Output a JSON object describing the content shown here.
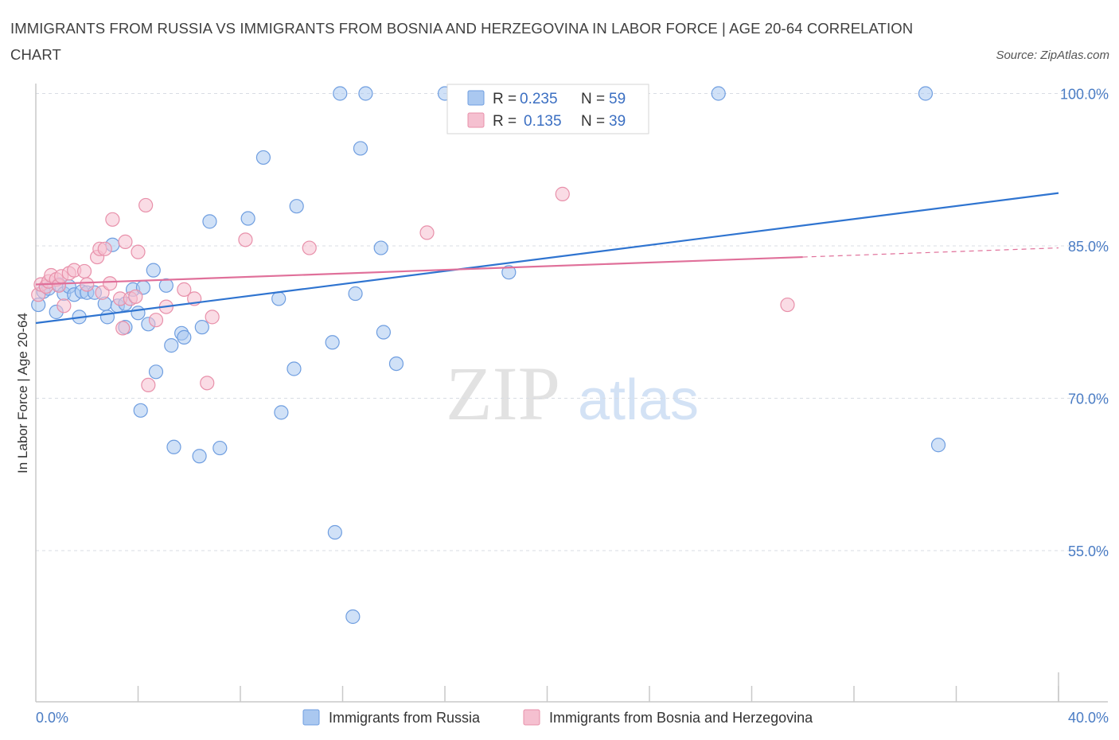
{
  "title": "IMMIGRANTS FROM RUSSIA VS IMMIGRANTS FROM BOSNIA AND HERZEGOVINA IN LABOR FORCE | AGE 20-64 CORRELATION CHART",
  "source": "Source: ZipAtlas.com",
  "watermark": {
    "zip": "ZIP",
    "atlas": "atlas"
  },
  "colors": {
    "blue_fill": "#aac8f0",
    "blue_stroke": "#6f9ee0",
    "blue_line": "#2f74d0",
    "pink_fill": "#f5c0d0",
    "pink_stroke": "#e890aa",
    "pink_line": "#e0709a",
    "tick_text": "#4a7cc4",
    "grid": "#d8dce3"
  },
  "legend": {
    "rows": [
      {
        "r_label": "R =",
        "r_value": "0.235",
        "n_label": "N =",
        "n_value": "59"
      },
      {
        "r_label": "R =",
        "r_value": "0.135",
        "n_label": "N =",
        "n_value": "39"
      }
    ]
  },
  "chart_data": {
    "type": "scatter",
    "title": "IMMIGRANTS FROM RUSSIA VS IMMIGRANTS FROM BOSNIA AND HERZEGOVINA IN LABOR FORCE | AGE 20-64 CORRELATION CHART",
    "xlabel": "",
    "ylabel": "In Labor Force | Age 20-64",
    "xlim": [
      0,
      40
    ],
    "ylim": [
      39,
      101.5
    ],
    "x_tick_labels": [
      "0.0%",
      "40.0%"
    ],
    "y_ticks": [
      100,
      85,
      70,
      55
    ],
    "y_tick_labels": [
      "100.0%",
      "85.0%",
      "70.0%",
      "55.0%"
    ],
    "grid": true,
    "legend_position": "top-center",
    "series": [
      {
        "name": "Immigrants from Russia",
        "color": "#aac8f0",
        "points": [
          [
            0.1,
            79.2
          ],
          [
            0.3,
            80.5
          ],
          [
            0.5,
            80.8
          ],
          [
            0.8,
            78.5
          ],
          [
            0.9,
            81.2
          ],
          [
            1.1,
            80.3
          ],
          [
            1.3,
            81.0
          ],
          [
            1.5,
            80.2
          ],
          [
            1.8,
            80.5
          ],
          [
            1.7,
            78.0
          ],
          [
            2.0,
            80.4
          ],
          [
            2.3,
            80.4
          ],
          [
            2.7,
            79.3
          ],
          [
            2.8,
            78.0
          ],
          [
            3.0,
            85.1
          ],
          [
            3.2,
            79.1
          ],
          [
            3.5,
            79.3
          ],
          [
            3.5,
            77.0
          ],
          [
            3.8,
            80.7
          ],
          [
            4.0,
            78.4
          ],
          [
            4.1,
            68.8
          ],
          [
            4.2,
            80.9
          ],
          [
            4.4,
            77.3
          ],
          [
            4.6,
            82.6
          ],
          [
            4.7,
            72.6
          ],
          [
            5.1,
            81.1
          ],
          [
            5.3,
            75.2
          ],
          [
            5.4,
            65.2
          ],
          [
            5.7,
            76.4
          ],
          [
            5.8,
            76.0
          ],
          [
            6.4,
            64.3
          ],
          [
            6.5,
            77.0
          ],
          [
            6.8,
            87.4
          ],
          [
            7.2,
            65.1
          ],
          [
            8.3,
            87.7
          ],
          [
            8.9,
            93.7
          ],
          [
            9.5,
            79.8
          ],
          [
            9.6,
            68.6
          ],
          [
            10.1,
            72.9
          ],
          [
            10.2,
            88.9
          ],
          [
            11.6,
            75.5
          ],
          [
            11.7,
            56.8
          ],
          [
            11.9,
            100.0
          ],
          [
            12.4,
            48.5
          ],
          [
            12.5,
            80.3
          ],
          [
            12.7,
            94.6
          ],
          [
            12.9,
            100.0
          ],
          [
            13.5,
            84.8
          ],
          [
            13.6,
            76.5
          ],
          [
            14.1,
            73.4
          ],
          [
            16.0,
            100.0
          ],
          [
            18.1,
            97.1
          ],
          [
            18.5,
            82.4
          ],
          [
            26.7,
            100.0
          ],
          [
            34.8,
            100.0
          ],
          [
            35.3,
            65.4
          ]
        ]
      },
      {
        "name": "Immigrants from Bosnia and Herzegovina",
        "color": "#f5c0d0",
        "points": [
          [
            0.1,
            80.2
          ],
          [
            0.2,
            81.2
          ],
          [
            0.4,
            81.0
          ],
          [
            0.5,
            81.5
          ],
          [
            0.6,
            82.1
          ],
          [
            0.8,
            81.7
          ],
          [
            0.9,
            81.1
          ],
          [
            1.0,
            82.0
          ],
          [
            1.1,
            79.1
          ],
          [
            1.3,
            82.3
          ],
          [
            1.5,
            82.6
          ],
          [
            1.9,
            82.5
          ],
          [
            2.0,
            81.2
          ],
          [
            2.4,
            83.9
          ],
          [
            2.5,
            84.7
          ],
          [
            2.6,
            80.4
          ],
          [
            2.7,
            84.7
          ],
          [
            2.9,
            81.3
          ],
          [
            3.0,
            87.6
          ],
          [
            3.3,
            79.8
          ],
          [
            3.4,
            76.9
          ],
          [
            3.5,
            85.4
          ],
          [
            3.7,
            79.8
          ],
          [
            3.9,
            80.0
          ],
          [
            4.0,
            84.4
          ],
          [
            4.3,
            89.0
          ],
          [
            4.4,
            71.3
          ],
          [
            4.7,
            77.7
          ],
          [
            5.1,
            79.0
          ],
          [
            5.8,
            80.7
          ],
          [
            6.2,
            79.8
          ],
          [
            6.7,
            71.5
          ],
          [
            6.9,
            78.0
          ],
          [
            8.2,
            85.6
          ],
          [
            10.7,
            84.8
          ],
          [
            15.3,
            86.3
          ],
          [
            20.6,
            90.1
          ],
          [
            29.4,
            79.2
          ]
        ]
      }
    ],
    "trend_lines": [
      {
        "series": "Immigrants from Russia",
        "x0": 0,
        "y0": 77.4,
        "x1": 40,
        "y1": 90.2
      },
      {
        "series": "Immigrants from Bosnia and Herzegovina",
        "x0": 0,
        "y0": 81.2,
        "x1": 30,
        "y1": 83.9,
        "dashed_to_x": 40,
        "dashed_to_y": 84.8
      }
    ]
  }
}
